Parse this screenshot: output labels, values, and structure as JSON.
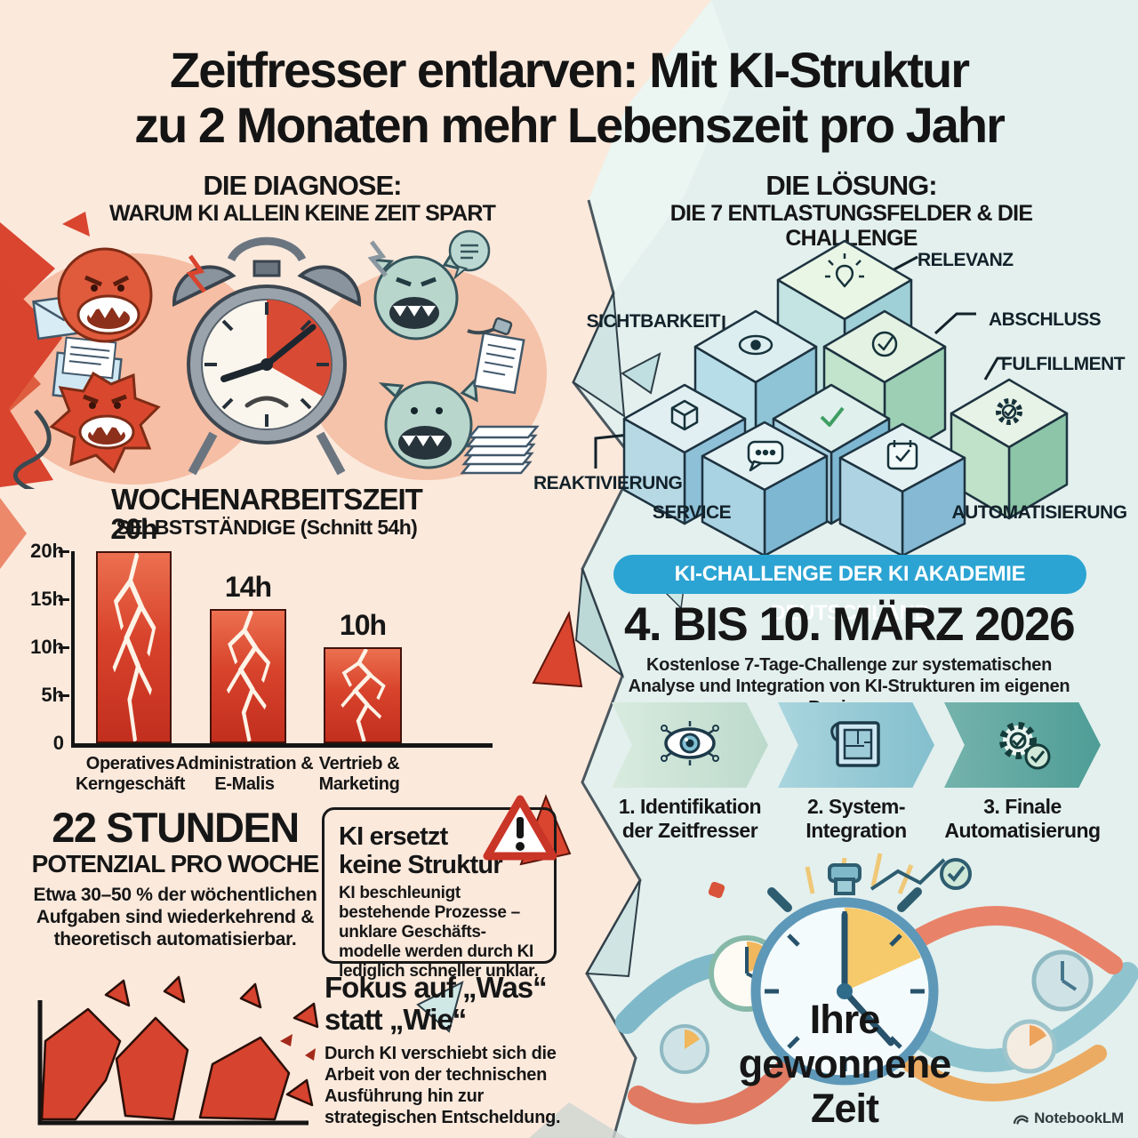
{
  "title": {
    "line1": "Zeitfresser entlarven: Mit KI-Struktur",
    "line2": "zu 2 Monaten mehr Lebenszeit pro Jahr"
  },
  "diagnosis": {
    "heading": "DIE DIAGNOSE:",
    "subheading": "WARUM KI ALLEIN KEINE ZEIT SPART"
  },
  "solution": {
    "heading": "DIE LÖSUNG:",
    "subheading": "DIE 7 ENTLASTUNGSFELDER & DIE CHALLENGE",
    "fields": [
      "RELEVANZ",
      "SICHTBARKEIT",
      "ABSCHLUSS",
      "FULFILLMENT",
      "REAKTIVIERUNG",
      "SERVICE",
      "AUTOMATISIERUNG"
    ]
  },
  "chart_data": {
    "type": "bar",
    "title": "WOCHENARBEITSZEIT",
    "subtitle": "SELBSTSTÄNDIGE (Schnitt 54h)",
    "categories": [
      "Operatives Kerngeschäft",
      "Administration & E-Malis",
      "Vertrieb & Marketing"
    ],
    "values": [
      20,
      14,
      10
    ],
    "value_labels": [
      "20h",
      "14h",
      "10h"
    ],
    "y_ticks": [
      "0",
      "5h",
      "10h",
      "15h",
      "20h"
    ],
    "ylim": [
      0,
      20
    ],
    "xlabel": "",
    "ylabel": "",
    "grid": false,
    "legend": false,
    "bar_color": "#d0402c"
  },
  "potential": {
    "heading1": "22 STUNDEN",
    "heading2": "POTENZIAL PRO WOCHE",
    "body": "Etwa 30–50 % der wöchentlichen Aufgaben sind wiederkehrend & theoretisch automatisierbar."
  },
  "warning_box": {
    "heading1": "KI ersetzt",
    "heading2": "keine Struktur",
    "body": "KI beschleunigt bestehende Prozesse – unklare Geschäfts- modelle werden durch KI lediglich schneller unklar."
  },
  "fokus": {
    "heading1": "Fokus auf „Was“",
    "heading2": "statt „Wie“",
    "body": "Durch KI verschiebt sich die Arbeit von der technischen Ausführung hin zur strategischen Entscheldung."
  },
  "challenge": {
    "banner": "KI-CHALLENGE DER KI AKADEMIE DEUTSCHLAND",
    "date": "4. BIS 10. MÄRZ 2026",
    "description": "Kostenlose 7-Tage-Challenge zur systematischen Analyse und Integration von KI-Strukturen im eigenen Business.",
    "steps": [
      {
        "label1": "1. Identifikation",
        "label2": "der Zeitfresser"
      },
      {
        "label1": "2. System-",
        "label2": "Integration"
      },
      {
        "label1": "3. Finale",
        "label2": "Automatisierung"
      }
    ]
  },
  "result": {
    "line1": "Ihre",
    "line2": "gewonnene",
    "line3": "Zeit"
  },
  "watermark": "NotebookLM",
  "colors": {
    "left_bg": "#fbe9dc",
    "right_bg": "#e3f0ee",
    "accent_blue": "#2ba4d3",
    "bar_red": "#d0402c",
    "teal_arrow": "#4e9d96",
    "warning_red": "#c93527"
  }
}
